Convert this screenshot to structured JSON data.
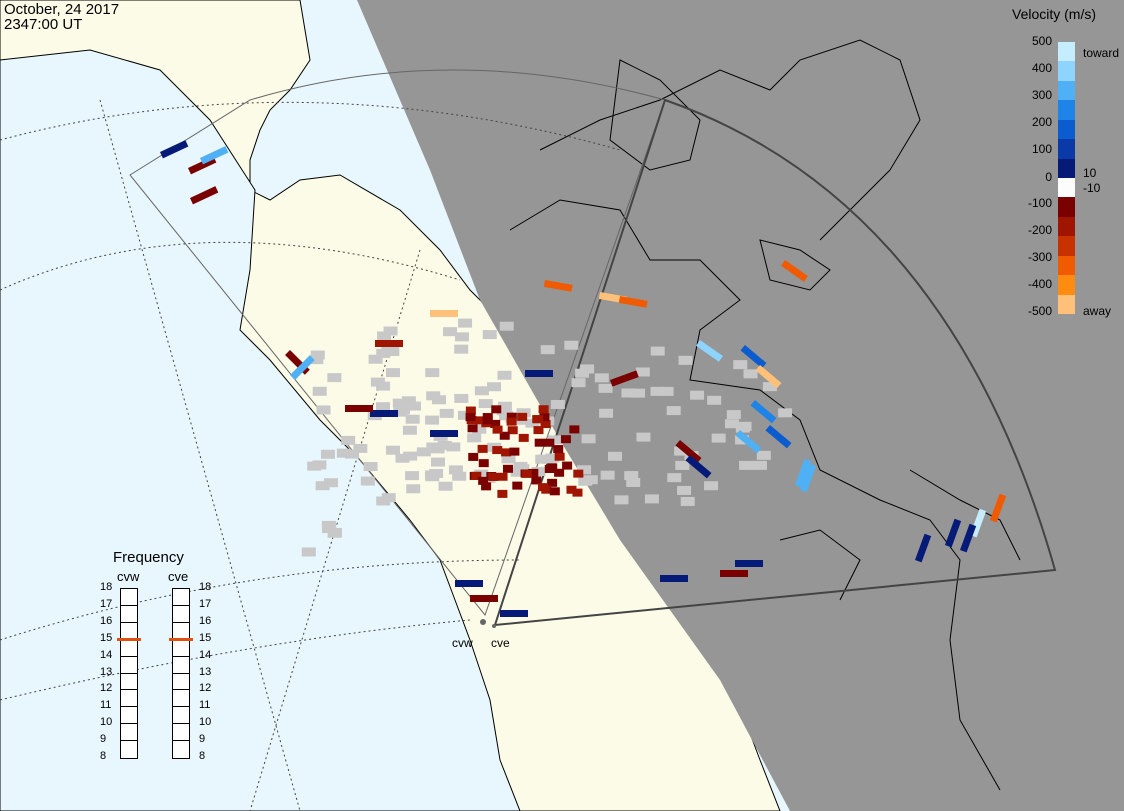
{
  "header": {
    "date": "October, 24 2017",
    "time": "2347:00 UT"
  },
  "colorbar": {
    "title": "Velocity (m/s)",
    "toward_label": "toward",
    "away_label": "away",
    "ticks": [
      "500",
      "400",
      "300",
      "200",
      "100",
      "10",
      "0",
      "-10",
      "-100",
      "-200",
      "-300",
      "-400",
      "-500"
    ],
    "colors": [
      "#c6ecff",
      "#8fd3ff",
      "#4fb0f5",
      "#1f84e8",
      "#0b5ccf",
      "#0a3aa8",
      "#061a78",
      "#fcfcfc",
      "#7a0000",
      "#a01500",
      "#c83200",
      "#f05a00",
      "#ff8c10",
      "#ffc07a"
    ]
  },
  "radars": [
    {
      "code": "cvw"
    },
    {
      "code": "cve"
    }
  ],
  "frequency": {
    "title": "Frequency",
    "labels": [
      "18",
      "17",
      "16",
      "15",
      "14",
      "13",
      "12",
      "11",
      "10",
      "9",
      "8"
    ],
    "cvw_mhz": 15,
    "cve_mhz": 15,
    "marker_color": "#e05010"
  },
  "colors": {
    "ocean": "#e8f6fd",
    "land": "#fbfbe8",
    "night": "#969696",
    "ground_scatter": "#c8c8c8"
  }
}
